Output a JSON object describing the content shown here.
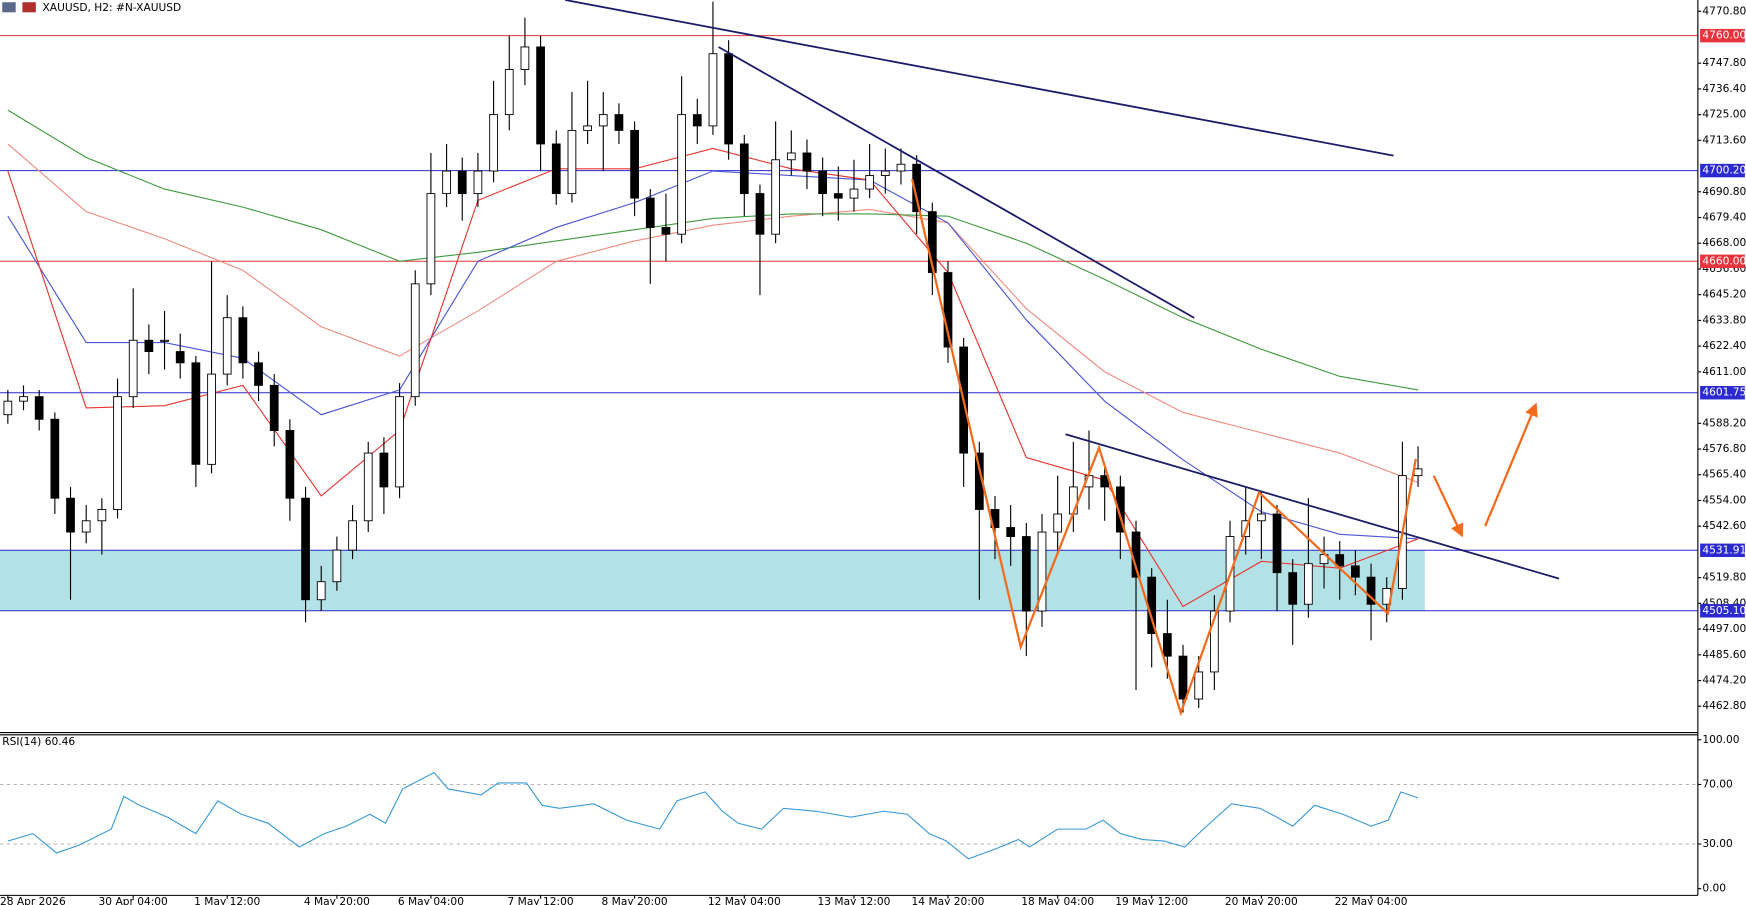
{
  "chart_data": [
    {
      "type": "candlestick",
      "title": "XAUUSD, H2:  #N-XAUUSD",
      "categories": [
        "28 Apr 2026",
        null,
        null,
        null,
        null,
        null,
        null,
        null,
        "30 Apr 04:00",
        null,
        null,
        null,
        null,
        null,
        "1 May 12:00",
        null,
        null,
        null,
        null,
        null,
        null,
        "4 May 20:00",
        null,
        null,
        null,
        null,
        null,
        "6 May 04:00",
        null,
        null,
        null,
        null,
        null,
        null,
        "7 May 12:00",
        null,
        null,
        null,
        null,
        null,
        "8 May 20:00",
        null,
        null,
        null,
        null,
        null,
        null,
        "12 May 04:00",
        null,
        null,
        null,
        null,
        null,
        null,
        "13 May 12:00",
        null,
        null,
        null,
        null,
        null,
        "14 May 20:00",
        null,
        null,
        null,
        null,
        null,
        null,
        "18 May 04:00",
        null,
        null,
        null,
        null,
        null,
        "19 May 12:00",
        null,
        null,
        null,
        null,
        null,
        null,
        "20 May 20:00",
        null,
        null,
        null,
        null,
        null,
        null,
        "22 May 04:00",
        null,
        null,
        null
      ],
      "open": [
        4592,
        4598,
        4600,
        4590,
        4555,
        4540,
        4545,
        4550,
        4600,
        4625,
        4625,
        4620,
        4615,
        4570,
        4610,
        4635,
        4615,
        4605,
        4585,
        4555,
        4510,
        4518,
        4532,
        4545,
        4575,
        4560,
        4600,
        4650,
        4690,
        4700,
        4690,
        4700,
        4725,
        4745,
        4755,
        4712,
        4690,
        4718,
        4720,
        4725,
        4718,
        4688,
        4675,
        4672,
        4725,
        4720,
        4752,
        4712,
        4690,
        4672,
        4705,
        4708,
        4700,
        4690,
        4688,
        4692,
        4698,
        4700,
        4703,
        4682,
        4655,
        4622,
        4575,
        4550,
        4542,
        4538,
        4505,
        4540,
        4548,
        4560,
        4565,
        4560,
        4540,
        4520,
        4495,
        4485,
        4466,
        4478,
        4505,
        4538,
        4545,
        4548,
        4522,
        4508,
        4526,
        4530,
        4525,
        4520,
        4508,
        4515,
        4565
      ],
      "high": [
        4603,
        4605,
        4603,
        4593,
        4560,
        4552,
        4555,
        4608,
        4648,
        4632,
        4638,
        4628,
        4618,
        4660,
        4645,
        4640,
        4620,
        4610,
        4590,
        4560,
        4525,
        4538,
        4552,
        4580,
        4582,
        4606,
        4656,
        4708,
        4712,
        4706,
        4708,
        4740,
        4760,
        4768,
        4760,
        4718,
        4735,
        4740,
        4735,
        4730,
        4722,
        4692,
        4690,
        4742,
        4732,
        4775,
        4758,
        4716,
        4694,
        4722,
        4718,
        4714,
        4706,
        4702,
        4705,
        4712,
        4710,
        4710,
        4707,
        4686,
        4660,
        4626,
        4580,
        4556,
        4552,
        4544,
        4548,
        4565,
        4580,
        4585,
        4570,
        4565,
        4545,
        4524,
        4510,
        4490,
        4485,
        4512,
        4545,
        4560,
        4558,
        4552,
        4528,
        4555,
        4538,
        4536,
        4532,
        4526,
        4520,
        4580,
        4578
      ],
      "low": [
        4588,
        4594,
        4585,
        4548,
        4510,
        4535,
        4530,
        4546,
        4595,
        4610,
        4612,
        4608,
        4560,
        4566,
        4605,
        4608,
        4598,
        4578,
        4545,
        4500,
        4505,
        4514,
        4528,
        4540,
        4548,
        4555,
        4596,
        4645,
        4684,
        4678,
        4684,
        4695,
        4718,
        4738,
        4700,
        4685,
        4686,
        4712,
        4700,
        4712,
        4680,
        4650,
        4660,
        4668,
        4712,
        4716,
        4705,
        4680,
        4645,
        4668,
        4698,
        4692,
        4680,
        4678,
        4682,
        4688,
        4690,
        4694,
        4672,
        4645,
        4615,
        4560,
        4510,
        4528,
        4525,
        4485,
        4498,
        4530,
        4540,
        4550,
        4545,
        4528,
        4470,
        4480,
        4475,
        4460,
        4462,
        4470,
        4500,
        4530,
        4528,
        4505,
        4490,
        4502,
        4515,
        4510,
        4512,
        4492,
        4500,
        4510,
        4560
      ],
      "close": [
        4598,
        4600,
        4590,
        4555,
        4540,
        4545,
        4550,
        4600,
        4625,
        4620,
        4625,
        4615,
        4570,
        4610,
        4635,
        4615,
        4605,
        4585,
        4555,
        4510,
        4518,
        4532,
        4545,
        4575,
        4560,
        4600,
        4650,
        4690,
        4700,
        4690,
        4700,
        4725,
        4745,
        4755,
        4712,
        4690,
        4718,
        4720,
        4725,
        4718,
        4688,
        4675,
        4672,
        4725,
        4720,
        4752,
        4712,
        4690,
        4672,
        4705,
        4708,
        4700,
        4690,
        4688,
        4692,
        4698,
        4700,
        4703,
        4682,
        4655,
        4622,
        4575,
        4550,
        4542,
        4538,
        4505,
        4540,
        4548,
        4560,
        4565,
        4560,
        4540,
        4520,
        4495,
        4485,
        4466,
        4478,
        4505,
        4538,
        4545,
        4548,
        4522,
        4508,
        4526,
        4530,
        4525,
        4520,
        4508,
        4515,
        4565,
        4568
      ],
      "overlays": [
        {
          "color": "#f08b80",
          "x": [
            0,
            5,
            10,
            15,
            20,
            25,
            30,
            35,
            40,
            45,
            50,
            55,
            60,
            65,
            70,
            75,
            80,
            85,
            90
          ],
          "values": [
            4712,
            4682,
            4670,
            4656,
            4631,
            4618,
            4638,
            4660,
            4669,
            4676,
            4680,
            4683,
            4677,
            4639,
            4611,
            4593,
            4584,
            4575,
            4562
          ]
        },
        {
          "color": "#3f9a3f",
          "x": [
            0,
            5,
            10,
            15,
            20,
            25,
            30,
            35,
            40,
            45,
            50,
            55,
            60,
            65,
            70,
            75,
            80,
            85,
            90
          ],
          "values": [
            4727,
            4706,
            4692,
            4684,
            4674,
            4660,
            4664,
            4669,
            4674,
            4679,
            4681,
            4681,
            4680,
            4668,
            4652,
            4635,
            4621,
            4609,
            4603
          ]
        },
        {
          "color": "#4a55d8",
          "x": [
            0,
            5,
            10,
            15,
            20,
            25,
            30,
            35,
            40,
            45,
            50,
            55,
            60,
            65,
            70,
            75,
            80,
            85,
            90
          ],
          "values": [
            4680,
            4624,
            4624,
            4617,
            4592,
            4603,
            4660,
            4675,
            4686,
            4700,
            4698,
            4696,
            4677,
            4634,
            4598,
            4572,
            4549,
            4539,
            4537
          ]
        },
        {
          "color": "#e8332e",
          "x": [
            0,
            5,
            10,
            15,
            20,
            25,
            30,
            35,
            40,
            45,
            50,
            55,
            60,
            65,
            70,
            75,
            80,
            85,
            90
          ],
          "values": [
            4700,
            4595,
            4596,
            4605,
            4556,
            4585,
            4687,
            4701,
            4701,
            4710,
            4701,
            4696,
            4655,
            4573,
            4563,
            4507,
            4527,
            4524,
            4537
          ]
        }
      ],
      "levels": [
        {
          "value": 4760,
          "label": "4760.00",
          "color": "#e8333c"
        },
        {
          "value": 4700.2,
          "label": "4700.20",
          "color": "#2a2ad0"
        },
        {
          "value": 4660,
          "label": "4660.00",
          "color": "#e8333c"
        },
        {
          "value": 4601.75,
          "label": "4601.75",
          "color": "#2a2ad0"
        },
        {
          "value": 4531.91,
          "label": "4531.91",
          "color": "#2a2ad0"
        },
        {
          "value": 4505.1,
          "label": "4505.10",
          "color": "#2a2ad0"
        }
      ],
      "zone": {
        "from": 4505.1,
        "to": 4531.91,
        "color": "#b2e1e6"
      },
      "ylim": [
        4450.9,
        4775.8
      ],
      "yticks": [
        {
          "value": 4770.8,
          "label": "4770.80"
        },
        {
          "value": 4747.8,
          "label": "4747.80"
        },
        {
          "value": 4736.4,
          "label": "4736.40"
        },
        {
          "value": 4725,
          "label": "4725.00"
        },
        {
          "value": 4713.6,
          "label": "4713.60"
        },
        {
          "value": 4690.8,
          "label": "4690.80"
        },
        {
          "value": 4679.4,
          "label": "4679.40"
        },
        {
          "value": 4668,
          "label": "4668.00"
        },
        {
          "value": 4656.6,
          "label": "4656.60"
        },
        {
          "value": 4645.2,
          "label": "4645.20"
        },
        {
          "value": 4633.8,
          "label": "4633.80"
        },
        {
          "value": 4622.4,
          "label": "4622.40"
        },
        {
          "value": 4611,
          "label": "4611.00"
        },
        {
          "value": 4588.2,
          "label": "4588.20"
        },
        {
          "value": 4576.8,
          "label": "4576.80"
        },
        {
          "value": 4565.4,
          "label": "4565.40"
        },
        {
          "value": 4554,
          "label": "4554.00"
        },
        {
          "value": 4542.6,
          "label": "4542.60"
        },
        {
          "value": 4519.8,
          "label": "4519.80"
        },
        {
          "value": 4508.4,
          "label": "4508.40"
        },
        {
          "value": 4497,
          "label": "4497.00"
        },
        {
          "value": 4485.6,
          "label": "4485.60"
        },
        {
          "value": 4474.2,
          "label": "4474.20"
        },
        {
          "value": 4462.8,
          "label": "4462.80"
        }
      ]
    },
    {
      "type": "line",
      "title": "RSI(14) 60.46",
      "color": "#3a9ad9",
      "x": [
        0,
        1.6,
        3.1,
        4.5,
        6.6,
        7.4,
        8.4,
        10.2,
        12,
        13.4,
        14.9,
        16.6,
        18.6,
        20.2,
        21.6,
        23.1,
        24.1,
        25.2,
        27.2,
        28.1,
        30.2,
        31.3,
        33.1,
        34.1,
        35.2,
        37.4,
        39.5,
        41.6,
        42.7,
        44.5,
        45.6,
        46.6,
        48.1,
        49.5,
        51.6,
        53.8,
        55.9,
        57.4,
        58.8,
        59.9,
        61.3,
        63.1,
        64.5,
        65.2,
        67,
        68.8,
        69.9,
        71,
        72.4,
        73.8,
        75.1,
        76.4,
        78.1,
        79.9,
        81,
        82,
        83.4,
        85.2,
        87,
        88.1,
        88.9,
        90
      ],
      "values": [
        32,
        37,
        24,
        29,
        40,
        62,
        56,
        48,
        37,
        59,
        50,
        44,
        28,
        37,
        42,
        50,
        44,
        67,
        78,
        67,
        63,
        71,
        71,
        56,
        54,
        57,
        46,
        40,
        59,
        65,
        52,
        44,
        40,
        54,
        52,
        48,
        52,
        50,
        37,
        32,
        20,
        27,
        33,
        28,
        40,
        40,
        46,
        37,
        33,
        32,
        28,
        41,
        57,
        54,
        48,
        42,
        56,
        50,
        42,
        46,
        65,
        61
      ],
      "levels": [
        70,
        30
      ],
      "ylim": [
        -4.5,
        103
      ],
      "yticks": [
        {
          "value": 100,
          "label": "100.00"
        },
        {
          "value": 70,
          "label": "70.00"
        },
        {
          "value": 30,
          "label": "30.00"
        },
        {
          "value": 0,
          "label": "0.00"
        }
      ]
    }
  ]
}
